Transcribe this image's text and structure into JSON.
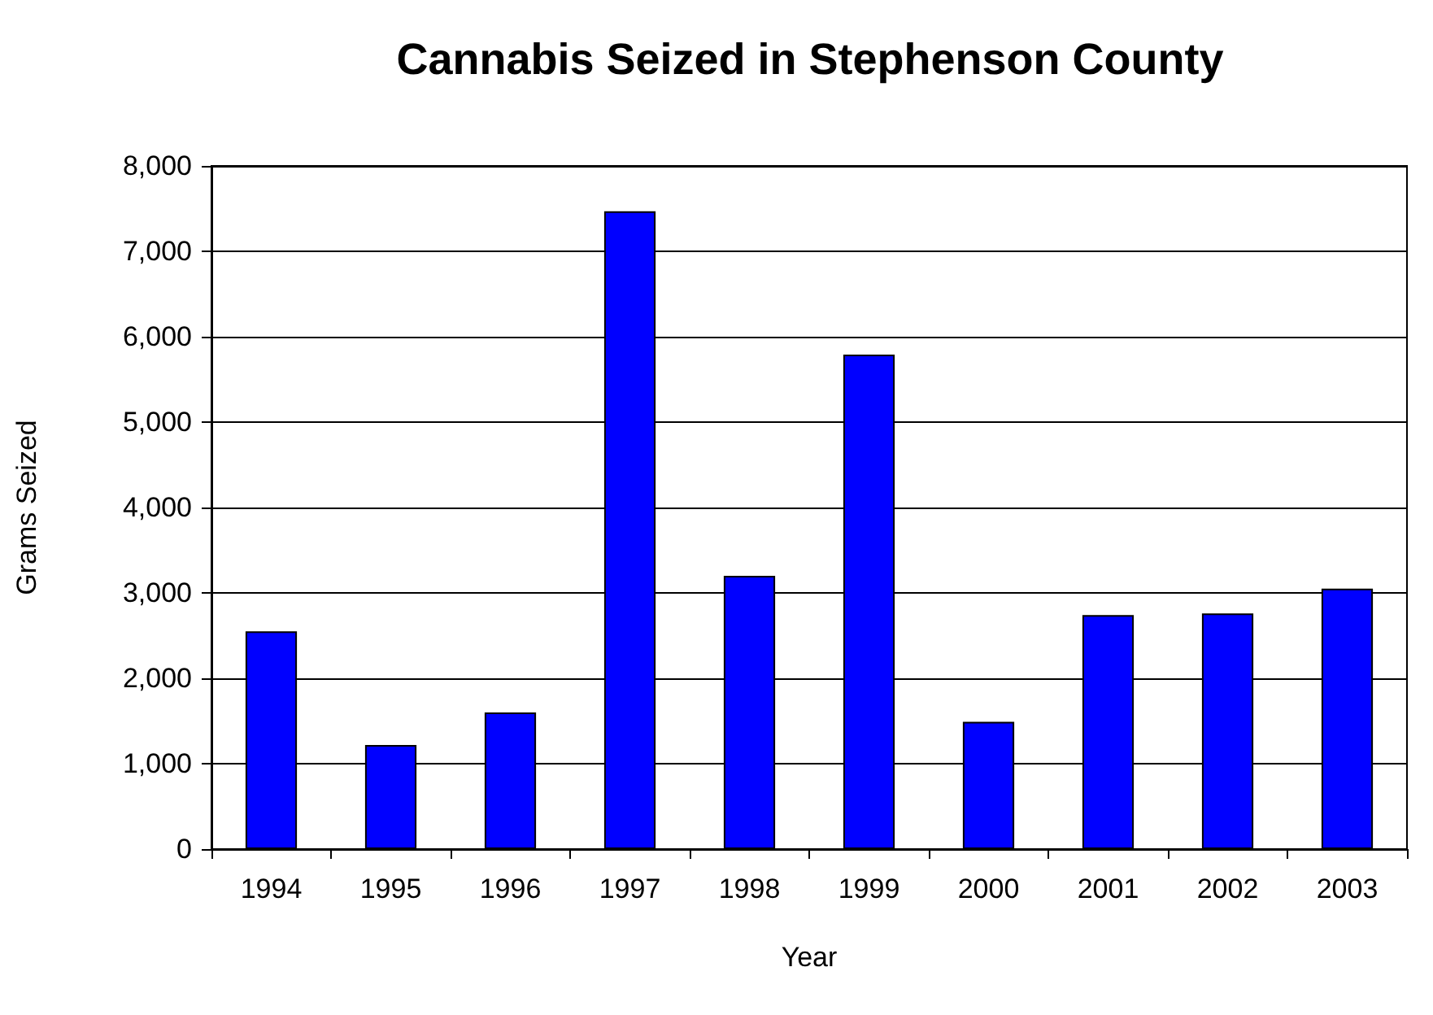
{
  "chart_data": {
    "type": "bar",
    "title": "Cannabis Seized in Stephenson County",
    "xlabel": "Year",
    "ylabel": "Grams Seized",
    "categories": [
      "1994",
      "1995",
      "1996",
      "1997",
      "1998",
      "1999",
      "2000",
      "2001",
      "2002",
      "2003"
    ],
    "values": [
      2550,
      1220,
      1600,
      7470,
      3200,
      5790,
      1490,
      2740,
      2760,
      3050
    ],
    "color": "#0000ff",
    "ylim": [
      0,
      8000
    ],
    "yticks": [
      0,
      {
        "value": 1000,
        "label": "1,000"
      },
      {
        "value": 2000,
        "label": "2,000"
      },
      {
        "value": 3000,
        "label": "3,000"
      },
      {
        "value": 4000,
        "label": "4,000"
      },
      {
        "value": 5000,
        "label": "5,000"
      },
      {
        "value": 6000,
        "label": "6,000"
      },
      {
        "value": 7000,
        "label": "7,000"
      },
      {
        "value": 8000,
        "label": "8,000"
      }
    ],
    "grid": "y"
  }
}
